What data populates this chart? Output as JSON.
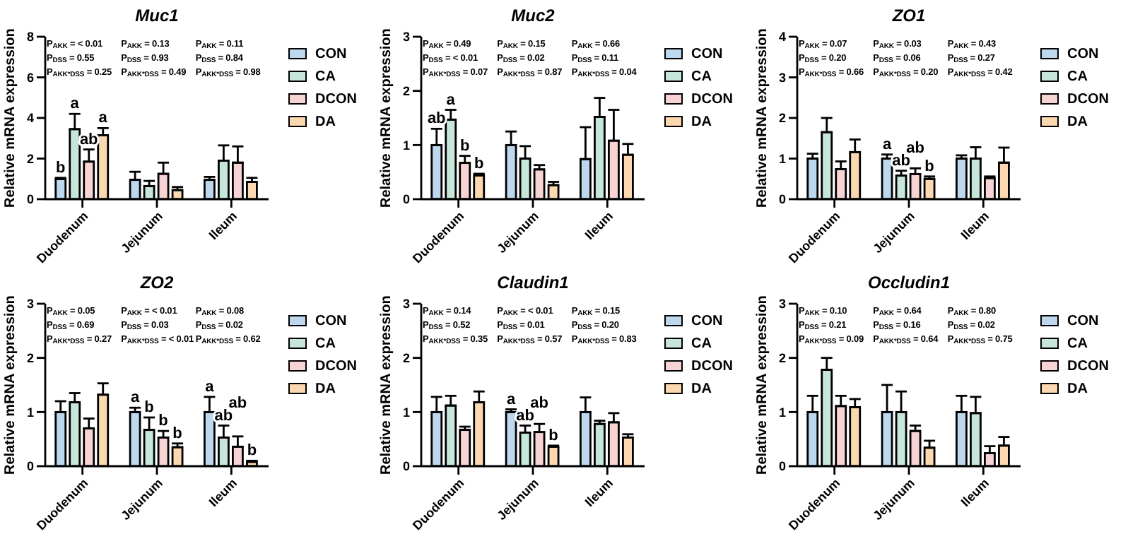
{
  "chart_data": [
    {
      "type": "bar",
      "title": "Muc1",
      "ylabel": "Relative mRNA expression",
      "categories": [
        "Duodenum",
        "Jejunum",
        "Ileum"
      ],
      "ylim": [
        0,
        8
      ],
      "yticks": [
        0,
        2,
        4,
        6,
        8
      ],
      "legend": "right",
      "annotations": [
        "P$_{AKK}$ = < 0.01",
        "P$_{DSS}$ = 0.55",
        "P$_{AKK*DSS}$ = 0.25",
        "P$_{AKK}$ = 0.13",
        "P$_{DSS}$ = 0.93",
        "P$_{AKK*DSS}$ = 0.49",
        "P$_{AKK}$ = 0.11",
        "P$_{DSS}$ = 0.84",
        "P$_{AKK*DSS}$ = 0.98"
      ],
      "series": [
        {
          "name": "CON",
          "color": "#bdd7ee",
          "values": [
            1.0,
            0.95,
            0.95
          ],
          "errors": [
            [
              1.0,
              1.05
            ],
            [
              0.95,
              1.35
            ],
            [
              0.95,
              1.1
            ]
          ],
          "value_labels": [
            "b",
            null,
            null
          ]
        },
        {
          "name": "CA",
          "color": "#c6e6d9",
          "values": [
            3.45,
            0.65,
            1.9
          ],
          "errors": [
            [
              3.45,
              4.2
            ],
            [
              0.65,
              0.9
            ],
            [
              1.9,
              2.65
            ]
          ],
          "value_labels": [
            "a",
            null,
            null
          ]
        },
        {
          "name": "DCON",
          "color": "#f8d3d3",
          "values": [
            1.85,
            1.25,
            1.8
          ],
          "errors": [
            [
              1.85,
              2.45
            ],
            [
              1.25,
              1.8
            ],
            [
              1.8,
              2.6
            ]
          ],
          "value_labels": [
            "ab",
            null,
            null
          ]
        },
        {
          "name": "DA",
          "color": "#fbd8b0",
          "values": [
            3.15,
            0.45,
            0.85
          ],
          "errors": [
            [
              3.15,
              3.5
            ],
            [
              0.45,
              0.6
            ],
            [
              0.85,
              1.05
            ]
          ],
          "value_labels": [
            "a",
            null,
            null
          ]
        }
      ]
    },
    {
      "type": "bar",
      "title": "Muc2",
      "ylabel": "Relative mRNA expression",
      "categories": [
        "Duodenum",
        "Jejunum",
        "Ileum"
      ],
      "ylim": [
        0,
        3
      ],
      "yticks": [
        0,
        1,
        2,
        3
      ],
      "legend": "right",
      "annotations": [
        "P$_{AKK}$ = 0.49",
        "P$_{DSS}$ = < 0.01",
        "P$_{AKK*DSS}$ = 0.07",
        "P$_{AKK}$ = 0.15",
        "P$_{DSS}$ = 0.02",
        "P$_{AKK*DSS}$ = 0.87",
        "P$_{AKK}$ = 0.66",
        "P$_{DSS}$ = 0.11",
        "P$_{AKK*DSS}$ = 0.04"
      ],
      "series": [
        {
          "name": "CON",
          "color": "#bdd7ee",
          "values": [
            1.0,
            1.0,
            0.74
          ],
          "errors": [
            [
              1.0,
              1.3
            ],
            [
              1.0,
              1.25
            ],
            [
              0.74,
              1.33
            ]
          ],
          "value_labels": [
            "ab",
            null,
            null
          ]
        },
        {
          "name": "CA",
          "color": "#c6e6d9",
          "values": [
            1.47,
            0.75,
            1.52
          ],
          "errors": [
            [
              1.47,
              1.65
            ],
            [
              0.75,
              0.98
            ],
            [
              1.52,
              1.87
            ]
          ],
          "value_labels": [
            "a",
            null,
            null
          ]
        },
        {
          "name": "DCON",
          "color": "#f8d3d3",
          "values": [
            0.67,
            0.55,
            1.08
          ],
          "errors": [
            [
              0.67,
              0.8
            ],
            [
              0.55,
              0.63
            ],
            [
              1.08,
              1.65
            ]
          ],
          "value_labels": [
            "b",
            null,
            null
          ]
        },
        {
          "name": "DA",
          "color": "#fbd8b0",
          "values": [
            0.44,
            0.26,
            0.82
          ],
          "errors": [
            [
              0.44,
              0.47
            ],
            [
              0.26,
              0.32
            ],
            [
              0.82,
              1.02
            ]
          ],
          "value_labels": [
            "b",
            null,
            null
          ]
        }
      ]
    },
    {
      "type": "bar",
      "title": "ZO1",
      "ylabel": "Relative mRNA expression",
      "categories": [
        "Duodenum",
        "Jejunum",
        "Ileum"
      ],
      "ylim": [
        0,
        4
      ],
      "yticks": [
        0,
        1,
        2,
        3,
        4
      ],
      "legend": "right",
      "annotations": [
        "P$_{AKK}$ = 0.07",
        "P$_{DSS}$ = 0.20",
        "P$_{AKK*DSS}$ = 0.66",
        "P$_{AKK}$ = 0.03",
        "P$_{DSS}$ = 0.06",
        "P$_{AKK*DSS}$ = 0.20",
        "P$_{AKK}$ = 0.43",
        "P$_{DSS}$ = 0.27",
        "P$_{AKK*DSS}$ = 0.42"
      ],
      "series": [
        {
          "name": "CON",
          "color": "#bdd7ee",
          "values": [
            1.0,
            1.0,
            1.0
          ],
          "errors": [
            [
              1.0,
              1.12
            ],
            [
              1.0,
              1.1
            ],
            [
              1.0,
              1.08
            ]
          ],
          "value_labels": [
            null,
            "a",
            null
          ]
        },
        {
          "name": "CA",
          "color": "#c6e6d9",
          "values": [
            1.65,
            0.58,
            1.0
          ],
          "errors": [
            [
              1.65,
              2.0
            ],
            [
              0.58,
              0.7
            ],
            [
              1.0,
              1.28
            ]
          ],
          "value_labels": [
            null,
            "ab",
            null
          ]
        },
        {
          "name": "DCON",
          "color": "#f8d3d3",
          "values": [
            0.74,
            0.62,
            0.52
          ],
          "errors": [
            [
              0.74,
              0.93
            ],
            [
              0.62,
              0.76
            ],
            [
              0.52,
              0.56
            ]
          ],
          "value_labels": [
            null,
            "ab",
            null
          ]
        },
        {
          "name": "DA",
          "color": "#fbd8b0",
          "values": [
            1.16,
            0.5,
            0.9
          ],
          "errors": [
            [
              1.16,
              1.47
            ],
            [
              0.5,
              0.56
            ],
            [
              0.9,
              1.27
            ]
          ],
          "value_labels": [
            null,
            "b",
            null
          ]
        }
      ]
    },
    {
      "type": "bar",
      "title": "ZO2",
      "ylabel": "Relative mRNA expression",
      "categories": [
        "Duodenum",
        "Jejunum",
        "Ileum"
      ],
      "ylim": [
        0,
        3
      ],
      "yticks": [
        0,
        1,
        2,
        3
      ],
      "legend": "right",
      "annotations": [
        "P$_{AKK}$ = 0.05",
        "P$_{DSS}$ = 0.69",
        "P$_{AKK*DSS}$ = 0.27",
        "P$_{AKK}$ = < 0.01",
        "P$_{DSS}$ = 0.03",
        "P$_{AKK*DSS}$ = < 0.01",
        "P$_{AKK}$ = 0.08",
        "P$_{DSS}$ = 0.02",
        "P$_{AKK*DSS}$ = 0.62"
      ],
      "series": [
        {
          "name": "CON",
          "color": "#bdd7ee",
          "values": [
            1.0,
            1.0,
            1.0
          ],
          "errors": [
            [
              1.0,
              1.2
            ],
            [
              1.0,
              1.08
            ],
            [
              1.0,
              1.28
            ]
          ],
          "value_labels": [
            null,
            "a",
            "a"
          ]
        },
        {
          "name": "CA",
          "color": "#c6e6d9",
          "values": [
            1.18,
            0.67,
            0.53
          ],
          "errors": [
            [
              1.18,
              1.35
            ],
            [
              0.67,
              0.9
            ],
            [
              0.53,
              0.75
            ]
          ],
          "value_labels": [
            null,
            "b",
            "ab"
          ]
        },
        {
          "name": "DCON",
          "color": "#f8d3d3",
          "values": [
            0.7,
            0.53,
            0.36
          ],
          "errors": [
            [
              0.7,
              0.88
            ],
            [
              0.53,
              0.65
            ],
            [
              0.36,
              0.55
            ]
          ],
          "value_labels": [
            null,
            "b",
            "ab"
          ]
        },
        {
          "name": "DA",
          "color": "#fbd8b0",
          "values": [
            1.32,
            0.35,
            0.08
          ],
          "errors": [
            [
              1.32,
              1.53
            ],
            [
              0.35,
              0.42
            ],
            [
              0.08,
              0.1
            ]
          ],
          "value_labels": [
            null,
            "b",
            "b"
          ]
        }
      ]
    },
    {
      "type": "bar",
      "title": "Claudin1",
      "ylabel": "Relative mRNA expression",
      "categories": [
        "Duodenum",
        "Jejunum",
        "Ileum"
      ],
      "ylim": [
        0,
        3
      ],
      "yticks": [
        0,
        1,
        2,
        3
      ],
      "legend": "right",
      "annotations": [
        "P$_{AKK}$ = 0.14",
        "P$_{DSS}$ = 0.52",
        "P$_{AKK*DSS}$ = 0.35",
        "P$_{AKK}$ = < 0.01",
        "P$_{DSS}$ = 0.01",
        "P$_{AKK*DSS}$ = 0.57",
        "P$_{AKK}$ = 0.15",
        "P$_{DSS}$ = 0.20",
        "P$_{AKK*DSS}$ = 0.83"
      ],
      "series": [
        {
          "name": "CON",
          "color": "#bdd7ee",
          "values": [
            1.0,
            1.0,
            1.0
          ],
          "errors": [
            [
              1.0,
              1.28
            ],
            [
              1.0,
              1.05
            ],
            [
              1.0,
              1.27
            ]
          ],
          "value_labels": [
            null,
            "a",
            null
          ]
        },
        {
          "name": "CA",
          "color": "#c6e6d9",
          "values": [
            1.12,
            0.62,
            0.78
          ],
          "errors": [
            [
              1.12,
              1.3
            ],
            [
              0.62,
              0.75
            ],
            [
              0.78,
              0.84
            ]
          ],
          "value_labels": [
            null,
            "ab",
            null
          ]
        },
        {
          "name": "DCON",
          "color": "#f8d3d3",
          "values": [
            0.67,
            0.63,
            0.81
          ],
          "errors": [
            [
              0.67,
              0.73
            ],
            [
              0.63,
              0.78
            ],
            [
              0.81,
              0.98
            ]
          ],
          "value_labels": [
            null,
            "ab",
            null
          ]
        },
        {
          "name": "DA",
          "color": "#fbd8b0",
          "values": [
            1.18,
            0.36,
            0.53
          ],
          "errors": [
            [
              1.18,
              1.38
            ],
            [
              0.36,
              0.38
            ],
            [
              0.53,
              0.59
            ]
          ],
          "value_labels": [
            null,
            "b",
            null
          ]
        }
      ]
    },
    {
      "type": "bar",
      "title": "Occludin1",
      "ylabel": "Relative mRNA expression",
      "categories": [
        "Duodenum",
        "Jejunum",
        "Ileum"
      ],
      "ylim": [
        0,
        3
      ],
      "yticks": [
        0,
        1,
        2,
        3
      ],
      "legend": "right",
      "annotations": [
        "P$_{AKK}$ = 0.10",
        "P$_{DSS}$ = 0.21",
        "P$_{AKK*DSS}$ = 0.09",
        "P$_{AKK}$ = 0.64",
        "P$_{DSS}$ = 0.16",
        "P$_{AKK*DSS}$ = 0.64",
        "P$_{AKK}$ = 0.80",
        "P$_{DSS}$ = 0.02",
        "P$_{AKK*DSS}$ = 0.75"
      ],
      "series": [
        {
          "name": "CON",
          "color": "#bdd7ee",
          "values": [
            1.0,
            1.0,
            1.0
          ],
          "errors": [
            [
              1.0,
              1.3
            ],
            [
              1.0,
              1.5
            ],
            [
              1.0,
              1.3
            ]
          ]
        },
        {
          "name": "CA",
          "color": "#c6e6d9",
          "values": [
            1.78,
            1.0,
            0.98
          ],
          "errors": [
            [
              1.78,
              2.0
            ],
            [
              1.0,
              1.38
            ],
            [
              0.98,
              1.28
            ]
          ]
        },
        {
          "name": "DCON",
          "color": "#f8d3d3",
          "values": [
            1.11,
            0.65,
            0.24
          ],
          "errors": [
            [
              1.11,
              1.3
            ],
            [
              0.65,
              0.75
            ],
            [
              0.24,
              0.37
            ]
          ]
        },
        {
          "name": "DA",
          "color": "#fbd8b0",
          "values": [
            1.09,
            0.34,
            0.38
          ],
          "errors": [
            [
              1.09,
              1.24
            ],
            [
              0.34,
              0.47
            ],
            [
              0.38,
              0.54
            ]
          ]
        }
      ]
    }
  ]
}
